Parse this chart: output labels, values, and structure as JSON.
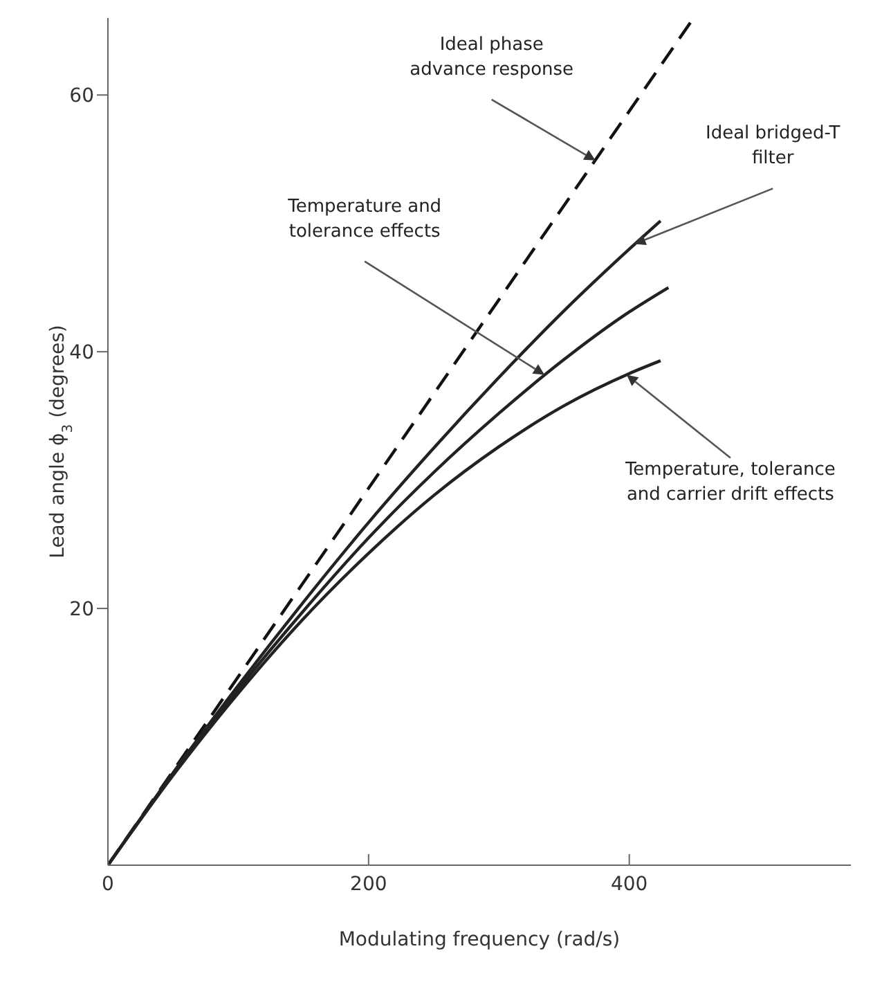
{
  "chart_data": {
    "type": "line",
    "xlabel": "Modulating frequency (rad/s)",
    "ylabel": "Lead angle ϕ$_{3}$ (degrees)",
    "xlim": [
      0,
      570
    ],
    "xticks": [
      0,
      200,
      400
    ],
    "ylim": [
      0,
      66
    ],
    "yticks": [
      20,
      40,
      60
    ],
    "grid": false,
    "series": [
      {
        "color": "#111111",
        "line_style": "dashed",
        "x": [
          0,
          448
        ],
        "values": [
          0,
          65.8
        ]
      },
      {
        "color": "#222222",
        "line_style": "solid",
        "x": [
          0,
          50,
          100,
          150,
          200,
          250,
          300,
          350,
          400,
          424
        ],
        "values": [
          0,
          7.2,
          14.0,
          20.5,
          26.7,
          32.5,
          38.0,
          43.2,
          48.0,
          50.2
        ]
      },
      {
        "color": "#222222",
        "line_style": "solid",
        "x": [
          0,
          50,
          100,
          150,
          200,
          250,
          300,
          350,
          400,
          430
        ],
        "values": [
          0,
          7.1,
          13.7,
          19.8,
          25.5,
          30.6,
          35.2,
          39.4,
          43.1,
          45.0
        ]
      },
      {
        "color": "#222222",
        "line_style": "solid",
        "x": [
          0,
          50,
          100,
          150,
          200,
          250,
          300,
          350,
          400,
          424
        ],
        "values": [
          0,
          7.0,
          13.4,
          19.2,
          24.3,
          28.8,
          32.6,
          35.8,
          38.3,
          39.3
        ]
      }
    ],
    "annotations": [
      {
        "text": "Ideal phase\nadvance response",
        "x": 374,
        "y": 54.9
      },
      {
        "text": "Ideal bridged-T\nfilter",
        "x": 404,
        "y": 48.4
      },
      {
        "text": "Temperature and\ntolerance effects",
        "x": 335,
        "y": 38.2
      },
      {
        "text": "Temperature, tolerance\nand carrier drift effects",
        "x": 398,
        "y": 38.2
      }
    ]
  }
}
